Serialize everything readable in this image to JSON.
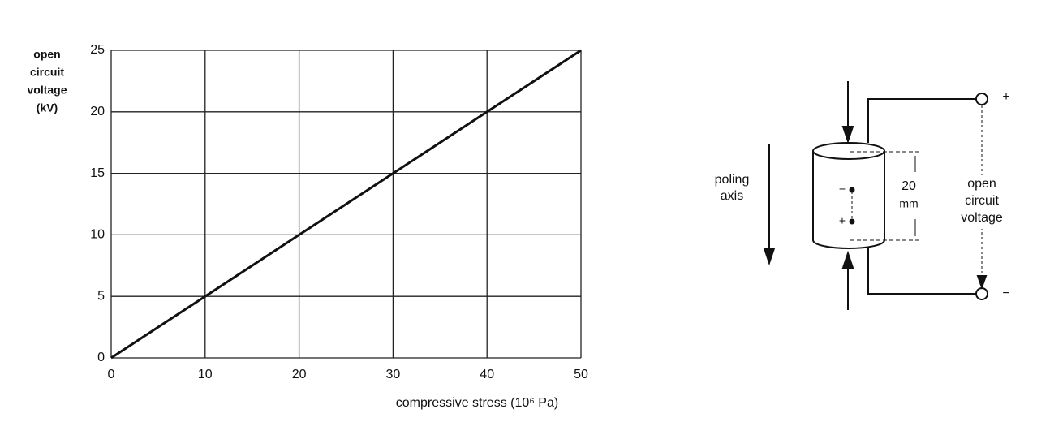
{
  "chart_data": {
    "type": "line",
    "ylabel": [
      "open",
      "circuit",
      "voltage",
      "(kV)"
    ],
    "xlabel": "compressive stress (10⁶ Pa)",
    "x": [
      0,
      10,
      20,
      30,
      40,
      50
    ],
    "series": [
      {
        "color": "#111111",
        "values": [
          0,
          5,
          10,
          15,
          20,
          25
        ]
      }
    ],
    "xlim": [
      0,
      50
    ],
    "xticks": [
      0,
      10,
      20,
      30,
      40,
      50
    ],
    "ylim": [
      0,
      25
    ],
    "yticks": [
      0,
      5,
      10,
      15,
      20,
      25
    ],
    "grid": true
  },
  "diagram": {
    "poling_axis": [
      "poling",
      "axis"
    ],
    "length": [
      "20",
      "mm"
    ],
    "output": [
      "open",
      "circuit",
      "voltage"
    ],
    "plus": "+",
    "minus": "−",
    "inner_minus": "−",
    "inner_plus": "+"
  }
}
